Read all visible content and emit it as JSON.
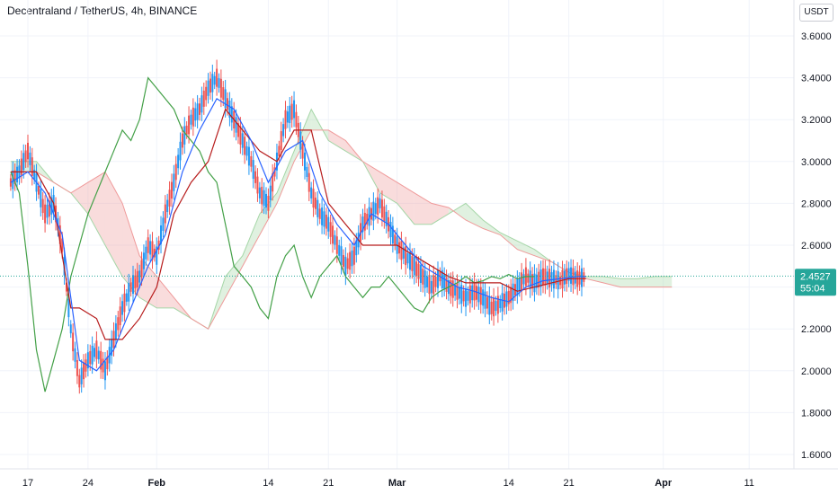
{
  "header": {
    "title": "Decentraland / TetherUS, 4h, BINANCE",
    "currency": "USDT"
  },
  "price_label": {
    "price": "2.4527",
    "countdown": "55:04",
    "color": "#26a69a"
  },
  "colors": {
    "up": "#2196f3",
    "down": "#ef5350",
    "conversion_line": "#2962ff",
    "base_line": "#b71c1c",
    "lagging_span": "#43a047",
    "cloud_bull": "#a5d6a7",
    "cloud_bear": "#ef9a9a"
  },
  "chart_data": {
    "type": "line",
    "indicator": "Ichimoku Cloud",
    "ylim": [
      1.55,
      3.72
    ],
    "yticks": [
      "3.6000",
      "3.4000",
      "3.2000",
      "3.0000",
      "2.8000",
      "2.6000",
      "2.4000",
      "2.2000",
      "2.0000",
      "1.8000",
      "1.6000"
    ],
    "xticks": [
      {
        "label": "17",
        "day": 17,
        "bold": false
      },
      {
        "label": "24",
        "day": 24,
        "bold": false
      },
      {
        "label": "Feb",
        "day": 32,
        "bold": true
      },
      {
        "label": "14",
        "day": 45,
        "bold": false
      },
      {
        "label": "21",
        "day": 52,
        "bold": false
      },
      {
        "label": "Mar",
        "day": 60,
        "bold": true
      },
      {
        "label": "14",
        "day": 73,
        "bold": false
      },
      {
        "label": "21",
        "day": 80,
        "bold": false
      },
      {
        "label": "Apr",
        "day": 91,
        "bold": true
      },
      {
        "label": "11",
        "day": 101,
        "bold": false
      }
    ],
    "last_price": 2.4527,
    "price": {
      "x": [
        15,
        16,
        17,
        18,
        19,
        20,
        21,
        22,
        23,
        24,
        25,
        26,
        27,
        28,
        29,
        30,
        31,
        32,
        33,
        34,
        35,
        36,
        37,
        38,
        39,
        40,
        41,
        42,
        43,
        44,
        45,
        46,
        47,
        48,
        49,
        50,
        51,
        52,
        53,
        54,
        55,
        56,
        57,
        58,
        59,
        60,
        61,
        62,
        63,
        64,
        65,
        66,
        67,
        68,
        69,
        70,
        71,
        72,
        73,
        74,
        75,
        76,
        77,
        78,
        79,
        80,
        81,
        82
      ],
      "y": [
        2.9,
        2.95,
        3.05,
        2.9,
        2.75,
        2.8,
        2.6,
        2.2,
        1.95,
        2.05,
        2.1,
        2.0,
        2.15,
        2.3,
        2.4,
        2.45,
        2.6,
        2.55,
        2.75,
        2.9,
        3.1,
        3.2,
        3.25,
        3.35,
        3.4,
        3.3,
        3.2,
        3.1,
        3.0,
        2.85,
        2.8,
        3.0,
        3.2,
        3.25,
        3.05,
        2.85,
        2.75,
        2.7,
        2.6,
        2.5,
        2.55,
        2.7,
        2.75,
        2.8,
        2.7,
        2.6,
        2.55,
        2.5,
        2.45,
        2.4,
        2.45,
        2.4,
        2.38,
        2.35,
        2.38,
        2.35,
        2.3,
        2.32,
        2.35,
        2.4,
        2.45,
        2.42,
        2.45,
        2.44,
        2.43,
        2.46,
        2.44,
        2.45
      ]
    },
    "tenkan": {
      "x": [
        15,
        17,
        19,
        21,
        23,
        25,
        27,
        29,
        31,
        33,
        35,
        37,
        39,
        41,
        43,
        45,
        47,
        49,
        51,
        53,
        55,
        57,
        59,
        61,
        63,
        65,
        67,
        69,
        71,
        73,
        75,
        77,
        79,
        81,
        82
      ],
      "y": [
        2.9,
        2.95,
        2.85,
        2.65,
        2.05,
        2.0,
        2.1,
        2.3,
        2.5,
        2.65,
        2.95,
        3.15,
        3.3,
        3.25,
        3.1,
        2.9,
        3.05,
        3.1,
        2.85,
        2.7,
        2.6,
        2.75,
        2.7,
        2.6,
        2.5,
        2.45,
        2.4,
        2.38,
        2.35,
        2.33,
        2.4,
        2.43,
        2.44,
        2.45,
        2.45
      ]
    },
    "kijun": {
      "x": [
        15,
        18,
        20,
        22,
        23,
        25,
        26,
        28,
        30,
        32,
        34,
        36,
        38,
        40,
        42,
        44,
        46,
        48,
        50,
        52,
        54,
        56,
        58,
        60,
        62,
        64,
        66,
        68,
        70,
        72,
        74,
        76,
        78,
        80,
        82
      ],
      "y": [
        2.95,
        2.95,
        2.8,
        2.3,
        2.3,
        2.25,
        2.15,
        2.15,
        2.25,
        2.4,
        2.75,
        2.9,
        3.0,
        3.25,
        3.15,
        3.05,
        3.0,
        3.15,
        3.15,
        2.8,
        2.7,
        2.6,
        2.6,
        2.6,
        2.55,
        2.5,
        2.45,
        2.42,
        2.42,
        2.42,
        2.38,
        2.4,
        2.42,
        2.44,
        2.44
      ]
    },
    "chikou": {
      "x": [
        15,
        16,
        17,
        18,
        19,
        20,
        21,
        22,
        23,
        24,
        25,
        26,
        27,
        28,
        29,
        30,
        31,
        32,
        33,
        34,
        35,
        36,
        37,
        38,
        39,
        40,
        41,
        42,
        43,
        44,
        45,
        46,
        47,
        48,
        49,
        50,
        51,
        52,
        53,
        54,
        55,
        56,
        57,
        58,
        59,
        60,
        61,
        62,
        63,
        64,
        65,
        66,
        67,
        68,
        69,
        70,
        71,
        72,
        73,
        74,
        75,
        76
      ],
      "y": [
        2.95,
        2.85,
        2.5,
        2.1,
        1.9,
        2.05,
        2.2,
        2.45,
        2.6,
        2.75,
        2.85,
        2.95,
        3.05,
        3.15,
        3.1,
        3.2,
        3.4,
        3.35,
        3.3,
        3.25,
        3.15,
        3.1,
        3.05,
        2.95,
        2.9,
        2.7,
        2.5,
        2.45,
        2.4,
        2.3,
        2.25,
        2.45,
        2.55,
        2.6,
        2.45,
        2.35,
        2.45,
        2.5,
        2.55,
        2.45,
        2.4,
        2.35,
        2.4,
        2.4,
        2.45,
        2.4,
        2.35,
        2.3,
        2.28,
        2.35,
        2.38,
        2.4,
        2.42,
        2.45,
        2.42,
        2.43,
        2.45,
        2.44,
        2.46,
        2.44,
        2.45,
        2.45
      ]
    },
    "span_a": {
      "x": [
        15,
        18,
        20,
        22,
        24,
        26,
        28,
        30,
        32,
        34,
        36,
        38,
        40,
        42,
        44,
        46,
        48,
        50,
        52,
        54,
        56,
        58,
        60,
        62,
        64,
        66,
        68,
        70,
        72,
        74,
        76,
        78,
        80,
        82,
        84,
        86,
        88,
        90,
        92
      ],
      "y": [
        3.0,
        3.0,
        2.9,
        2.85,
        2.75,
        2.6,
        2.45,
        2.35,
        2.3,
        2.3,
        2.25,
        2.2,
        2.45,
        2.55,
        2.75,
        2.85,
        3.05,
        3.25,
        3.1,
        3.05,
        3.0,
        2.85,
        2.8,
        2.7,
        2.7,
        2.75,
        2.8,
        2.72,
        2.66,
        2.62,
        2.58,
        2.52,
        2.47,
        2.45,
        2.45,
        2.44,
        2.44,
        2.45,
        2.45
      ]
    },
    "span_b": {
      "x": [
        15,
        18,
        20,
        22,
        24,
        26,
        28,
        30,
        32,
        34,
        36,
        38,
        40,
        42,
        44,
        46,
        48,
        50,
        52,
        54,
        56,
        58,
        60,
        62,
        64,
        66,
        68,
        70,
        72,
        74,
        76,
        78,
        80,
        82,
        84,
        86,
        88,
        90,
        92
      ],
      "y": [
        2.95,
        2.95,
        2.9,
        2.85,
        2.9,
        2.95,
        2.8,
        2.55,
        2.45,
        2.35,
        2.25,
        2.2,
        2.35,
        2.5,
        2.65,
        2.8,
        3.0,
        3.15,
        3.15,
        3.1,
        3.0,
        2.95,
        2.9,
        2.85,
        2.8,
        2.78,
        2.72,
        2.68,
        2.65,
        2.58,
        2.55,
        2.52,
        2.47,
        2.44,
        2.42,
        2.4,
        2.4,
        2.4,
        2.4
      ]
    }
  }
}
